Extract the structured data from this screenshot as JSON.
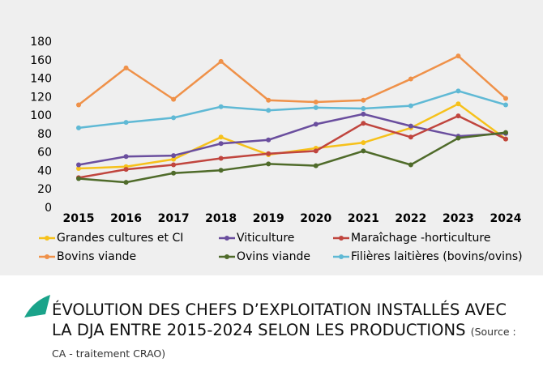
{
  "chart_data": {
    "type": "line",
    "title": "ÉVOLUTION DES CHEFS D’EXPLOITATION INSTALLÉS AVEC LA DJA ENTRE 2015-2024 SELON LES PRODUCTIONS",
    "subtitle": "(Source : CA - traitement CRAO)",
    "categories": [
      "2015",
      "2016",
      "2017",
      "2018",
      "2019",
      "2020",
      "2021",
      "2022",
      "2023",
      "2024"
    ],
    "series": [
      {
        "name": "Grandes cultures et CI",
        "color": "#f6c11b",
        "values": [
          43,
          45,
          53,
          77,
          58,
          65,
          71,
          87,
          113,
          75
        ]
      },
      {
        "name": "Viticulture",
        "color": "#6a4e9e",
        "values": [
          47,
          56,
          57,
          70,
          74,
          91,
          102,
          89,
          78,
          81
        ]
      },
      {
        "name": "Maraîchage -horticulture",
        "color": "#c0453e",
        "values": [
          33,
          42,
          47,
          54,
          59,
          62,
          92,
          77,
          100,
          75
        ]
      },
      {
        "name": "Bovins viande",
        "color": "#ef9149",
        "values": [
          112,
          152,
          118,
          159,
          117,
          115,
          117,
          140,
          165,
          119
        ]
      },
      {
        "name": "Ovins viande",
        "color": "#4f6b2a",
        "values": [
          32,
          28,
          38,
          41,
          48,
          46,
          62,
          47,
          76,
          82
        ]
      },
      {
        "name": "Filières laitières (bovins/ovins)",
        "color": "#5fb9d5",
        "values": [
          87,
          93,
          98,
          110,
          106,
          109,
          108,
          111,
          127,
          112
        ]
      }
    ],
    "ylim": [
      0,
      180
    ],
    "yticks": [
      0,
      20,
      40,
      60,
      80,
      100,
      120,
      140,
      160,
      180
    ],
    "grid": false,
    "legend": "bottom"
  }
}
